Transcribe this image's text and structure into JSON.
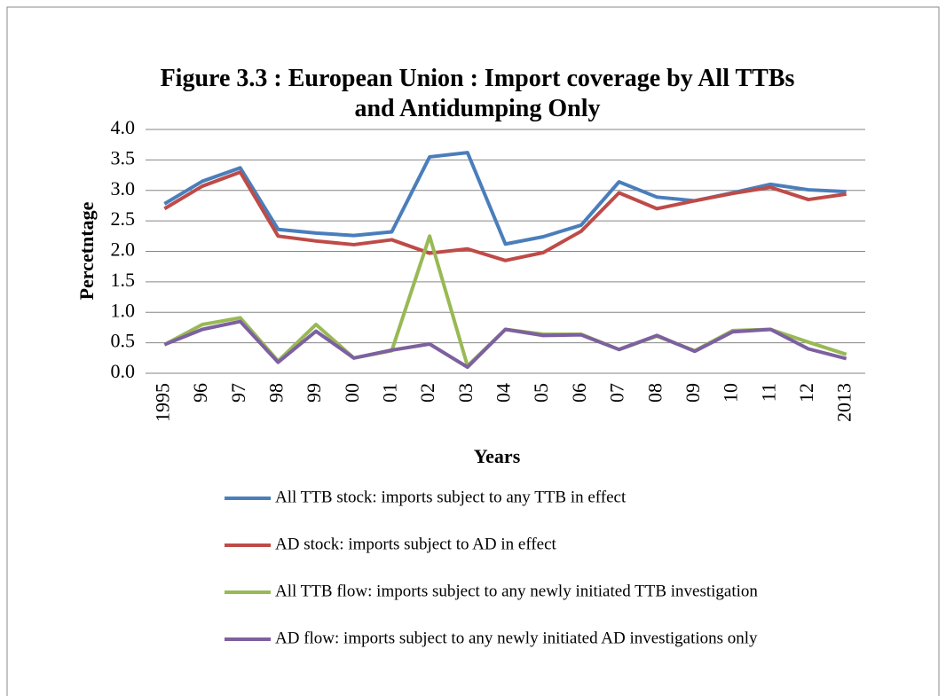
{
  "chart_data": {
    "type": "line",
    "title": "Figure 3.3 : European Union : Import coverage by All TTBs and Antidumping Only",
    "x_label": "Years",
    "y_label": "Percetntage",
    "categories": [
      "1995",
      "96",
      "97",
      "98",
      "99",
      "00",
      "01",
      "02",
      "03",
      "04",
      "05",
      "06",
      "07",
      "08",
      "09",
      "10",
      "11",
      "12",
      "2013"
    ],
    "series": [
      {
        "name": "All TTB stock: imports subject to any TTB in effect",
        "color": "#4a7ebb",
        "values": [
          2.78,
          3.15,
          3.37,
          2.36,
          2.3,
          2.26,
          2.32,
          3.55,
          3.62,
          2.12,
          2.24,
          2.43,
          3.14,
          2.89,
          2.83,
          2.96,
          3.1,
          3.01,
          2.98
        ]
      },
      {
        "name": "AD stock: imports subject to AD in effect",
        "color": "#be4b48",
        "values": [
          2.7,
          3.07,
          3.3,
          2.25,
          2.17,
          2.11,
          2.19,
          1.97,
          2.04,
          1.85,
          1.98,
          2.33,
          2.96,
          2.7,
          2.83,
          2.95,
          3.05,
          2.85,
          2.94
        ]
      },
      {
        "name": "All TTB flow: imports subject to any newly initiated TTB investigation",
        "color": "#98b954",
        "values": [
          0.47,
          0.8,
          0.91,
          0.2,
          0.8,
          0.25,
          0.37,
          2.25,
          0.12,
          0.72,
          0.64,
          0.64,
          0.39,
          0.61,
          0.37,
          0.7,
          0.72,
          0.51,
          0.31
        ]
      },
      {
        "name": "AD flow: imports subject to any newly initiated AD investigations only",
        "color": "#7d60a0",
        "values": [
          0.47,
          0.72,
          0.85,
          0.18,
          0.69,
          0.25,
          0.38,
          0.48,
          0.1,
          0.72,
          0.62,
          0.63,
          0.39,
          0.62,
          0.36,
          0.68,
          0.72,
          0.4,
          0.24
        ]
      }
    ],
    "ylim": [
      0,
      4
    ],
    "yticks": [
      {
        "value": 0,
        "label": "0.0"
      },
      0.5,
      {
        "value": 1,
        "label": "1.0"
      },
      1.5,
      {
        "value": 2,
        "label": "2.0"
      },
      2.5,
      {
        "value": 3,
        "label": "3.0"
      },
      3.5,
      {
        "value": 4,
        "label": "4.0"
      }
    ],
    "grid": true,
    "legend": "bottom"
  }
}
